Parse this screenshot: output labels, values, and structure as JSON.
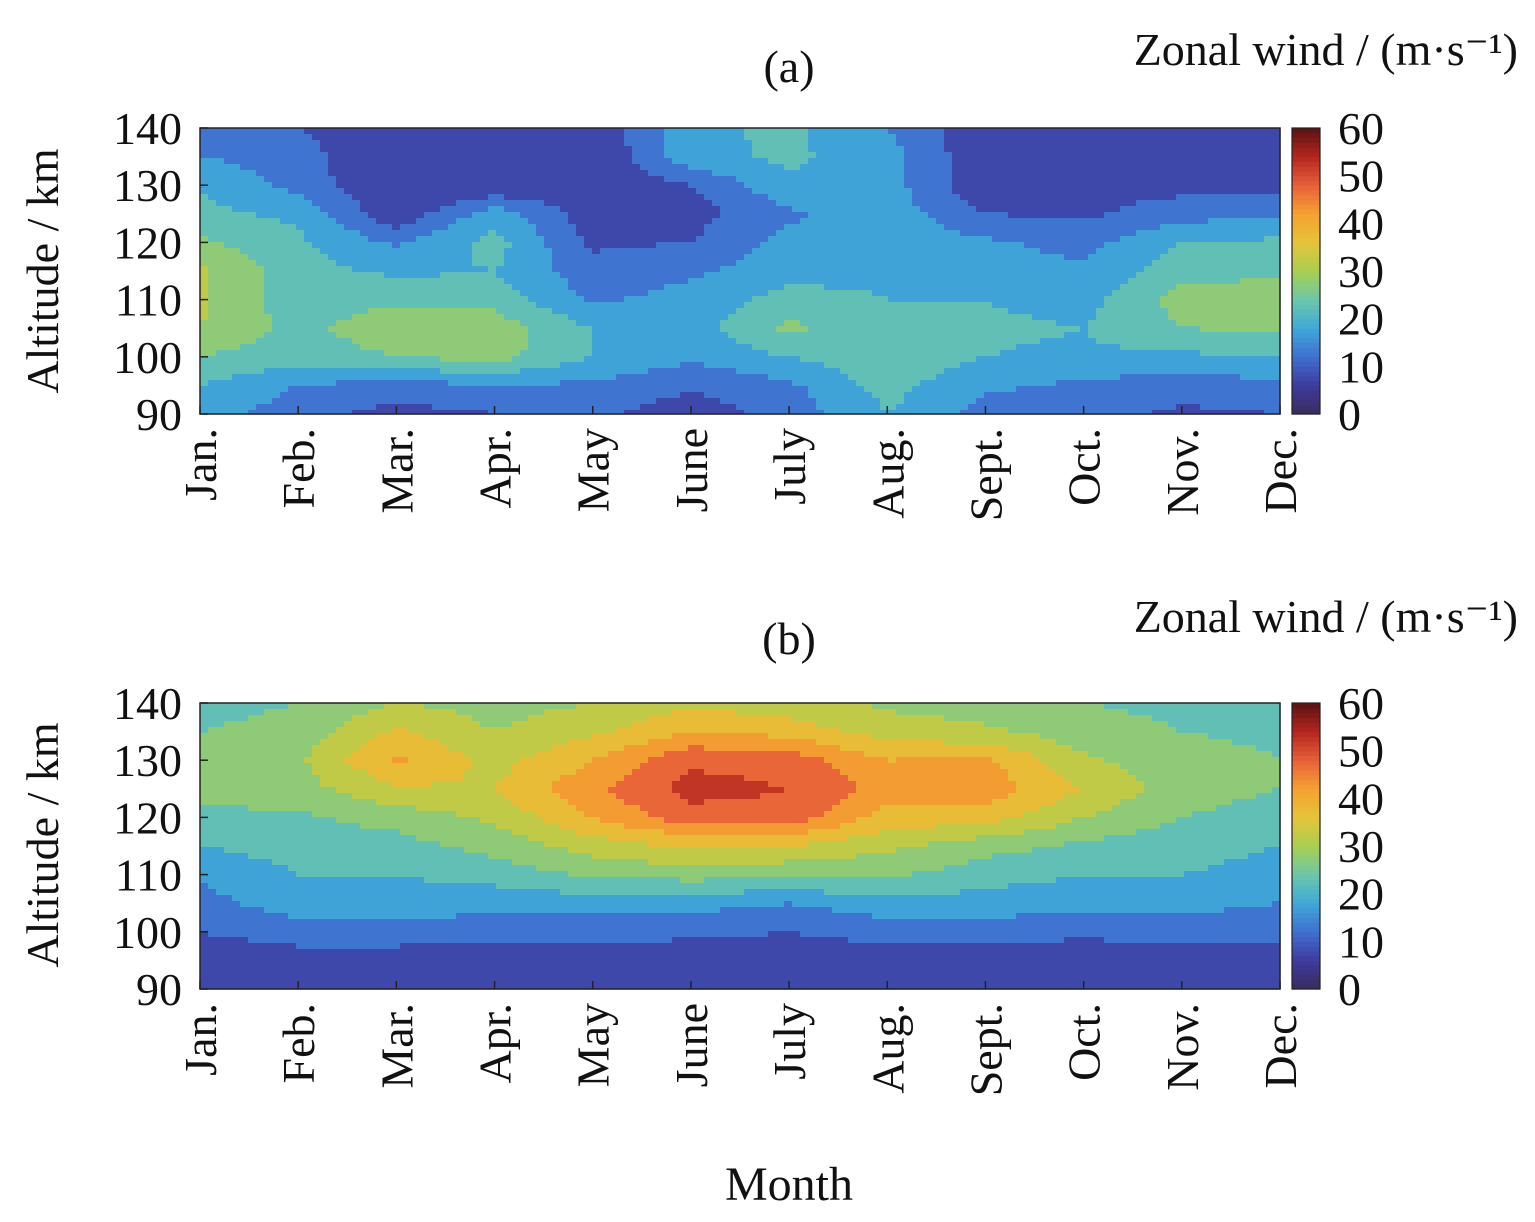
{
  "figure": {
    "xlabel": "Month",
    "colormap_stops": [
      "#3a2c5e",
      "#3d3b9d",
      "#3f6fd0",
      "#3fa8d8",
      "#6cc6ab",
      "#a8cf50",
      "#e5c43a",
      "#f4a230",
      "#e8603a",
      "#b4261e",
      "#5a1212"
    ]
  },
  "chart_data": [
    {
      "type": "heatmap",
      "panel_label": "(a)",
      "title": "",
      "colorbar_label": "Zonal wind / (m·s⁻¹)",
      "xlabel": "Month",
      "ylabel": "Altitude / km",
      "x": [
        "Jan.",
        "Feb.",
        "Mar.",
        "Apr.",
        "May",
        "June",
        "July",
        "Aug.",
        "Sept.",
        "Oct.",
        "Nov.",
        "Dec."
      ],
      "y": [
        90,
        95,
        100,
        105,
        110,
        115,
        120,
        125,
        130,
        135,
        140
      ],
      "yticks": [
        90,
        100,
        110,
        120,
        130,
        140
      ],
      "ylim": [
        90,
        140
      ],
      "clim": [
        0,
        60
      ],
      "colorbar_ticks": [
        0,
        10,
        20,
        30,
        40,
        50,
        60
      ],
      "z": [
        [
          18,
          12,
          8,
          10,
          11,
          7,
          12,
          20,
          13,
          12,
          9,
          10
        ],
        [
          20,
          15,
          13,
          15,
          14,
          11,
          14,
          22,
          16,
          14,
          12,
          14
        ],
        [
          25,
          22,
          25,
          27,
          20,
          16,
          20,
          24,
          20,
          19,
          19,
          20
        ],
        [
          30,
          23,
          29,
          28,
          20,
          18,
          26,
          22,
          21,
          20,
          25,
          26
        ],
        [
          31,
          22,
          24,
          23,
          14,
          17,
          22,
          20,
          20,
          18,
          27,
          28
        ],
        [
          31,
          22,
          19,
          20,
          12,
          14,
          18,
          19,
          18,
          16,
          23,
          24
        ],
        [
          26,
          21,
          14,
          22,
          9,
          10,
          17,
          18,
          16,
          13,
          20,
          21
        ],
        [
          21,
          19,
          6,
          18,
          7,
          8,
          14,
          18,
          10,
          9,
          13,
          14
        ],
        [
          20,
          13,
          5,
          5,
          6,
          10,
          19,
          17,
          6,
          8,
          8,
          8
        ],
        [
          15,
          12,
          5,
          5,
          5,
          18,
          21,
          17,
          6,
          6,
          6,
          6
        ],
        [
          14,
          10,
          6,
          5,
          6,
          19,
          21,
          15,
          6,
          5,
          6,
          6
        ]
      ]
    },
    {
      "type": "heatmap",
      "panel_label": "(b)",
      "title": "",
      "colorbar_label": "Zonal wind / (m·s⁻¹)",
      "xlabel": "Month",
      "ylabel": "Altitude / km",
      "x": [
        "Jan.",
        "Feb.",
        "Mar.",
        "Apr.",
        "May",
        "June",
        "July",
        "Aug.",
        "Sept.",
        "Oct.",
        "Nov.",
        "Dec."
      ],
      "y": [
        90,
        95,
        100,
        105,
        110,
        115,
        120,
        125,
        130,
        135,
        140
      ],
      "yticks": [
        90,
        100,
        110,
        120,
        130,
        140
      ],
      "ylim": [
        90,
        140
      ],
      "clim": [
        0,
        60
      ],
      "colorbar_ticks": [
        0,
        10,
        20,
        30,
        40,
        50,
        60
      ],
      "z": [
        [
          6,
          6,
          6,
          6,
          6,
          6,
          6,
          6,
          6,
          6,
          6,
          6
        ],
        [
          7,
          8,
          8,
          7,
          7,
          7,
          7,
          7,
          7,
          7,
          7,
          8
        ],
        [
          10,
          12,
          12,
          12,
          12,
          11,
          10,
          12,
          12,
          11,
          12,
          11
        ],
        [
          13,
          18,
          18,
          17,
          17,
          17,
          15,
          18,
          18,
          17,
          17,
          15
        ],
        [
          16,
          20,
          20,
          22,
          26,
          27,
          26,
          26,
          22,
          20,
          20,
          18
        ],
        [
          20,
          22,
          23,
          27,
          32,
          36,
          35,
          31,
          27,
          24,
          22,
          20
        ],
        [
          24,
          24,
          27,
          31,
          40,
          48,
          48,
          38,
          37,
          30,
          25,
          23
        ],
        [
          26,
          28,
          34,
          35,
          44,
          52,
          50,
          43,
          43,
          35,
          27,
          25
        ],
        [
          27,
          29,
          41,
          33,
          40,
          49,
          48,
          40,
          41,
          31,
          27,
          25
        ],
        [
          25,
          27,
          36,
          30,
          34,
          40,
          38,
          33,
          31,
          27,
          25,
          24
        ],
        [
          23,
          25,
          30,
          28,
          30,
          34,
          32,
          29,
          27,
          25,
          24,
          23
        ]
      ]
    }
  ]
}
